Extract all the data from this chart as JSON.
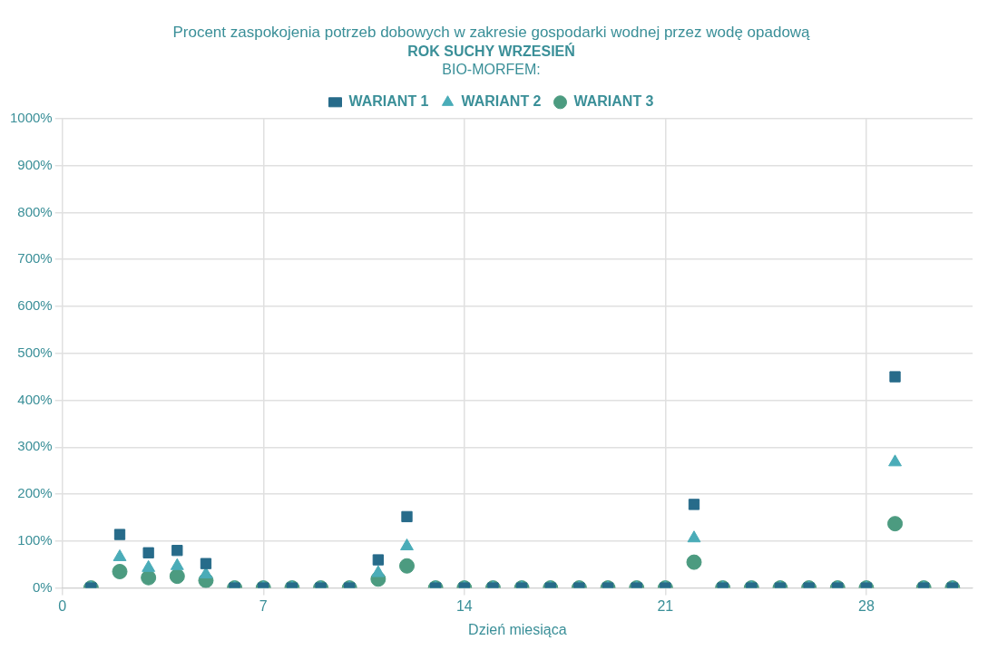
{
  "chart_data": {
    "type": "scatter",
    "title": "Procent zaspokojenia potrzeb dobowych w zakresie gospodarki wodnej przez wodę opadową",
    "subtitle": "ROK SUCHY WRZESIEŃ",
    "legend_title": "BIO-MORFEM:",
    "xlabel": "Dzień miesiąca",
    "x": [
      1,
      2,
      3,
      4,
      5,
      6,
      7,
      8,
      9,
      10,
      11,
      12,
      13,
      14,
      15,
      16,
      17,
      18,
      19,
      20,
      21,
      22,
      23,
      24,
      25,
      26,
      27,
      28,
      29,
      30,
      31
    ],
    "series": [
      {
        "name": "WARIANT 1",
        "color": "#276b8a",
        "marker": "square",
        "values": [
          0,
          114,
          75,
          80,
          52,
          0,
          0,
          0,
          0,
          0,
          60,
          152,
          0,
          0,
          0,
          0,
          0,
          0,
          0,
          0,
          0,
          178,
          0,
          0,
          0,
          0,
          0,
          0,
          450,
          0,
          0
        ]
      },
      {
        "name": "WARIANT 2",
        "color": "#4aacb8",
        "marker": "triangle",
        "values": [
          0,
          66,
          43,
          47,
          29,
          0,
          0,
          0,
          0,
          0,
          32,
          89,
          0,
          0,
          0,
          0,
          0,
          0,
          0,
          0,
          0,
          106,
          0,
          0,
          0,
          0,
          0,
          0,
          268,
          0,
          0
        ]
      },
      {
        "name": "WARIANT 3",
        "color": "#4c9b80",
        "marker": "circle",
        "values": [
          0,
          35,
          22,
          25,
          16,
          0,
          0,
          0,
          0,
          0,
          19,
          47,
          0,
          0,
          0,
          0,
          0,
          0,
          0,
          0,
          0,
          55,
          0,
          0,
          0,
          0,
          0,
          0,
          137,
          0,
          0
        ]
      }
    ],
    "xlim": [
      0,
      31.7
    ],
    "xticks": [
      0,
      7,
      14,
      21,
      28
    ],
    "ylim": [
      0,
      1000
    ],
    "yticks": [
      {
        "value": 0,
        "label": "0%"
      },
      {
        "value": 100,
        "label": "100%"
      },
      {
        "value": 200,
        "label": "200%"
      },
      {
        "value": 300,
        "label": "300%"
      },
      {
        "value": 400,
        "label": "400%"
      },
      {
        "value": 500,
        "label": "500%"
      },
      {
        "value": 600,
        "label": "600%"
      },
      {
        "value": 700,
        "label": "700%"
      },
      {
        "value": 800,
        "label": "800%"
      },
      {
        "value": 900,
        "label": "900%"
      },
      {
        "value": 1000,
        "label": "1000%"
      }
    ],
    "grid": true,
    "legend": "top"
  }
}
